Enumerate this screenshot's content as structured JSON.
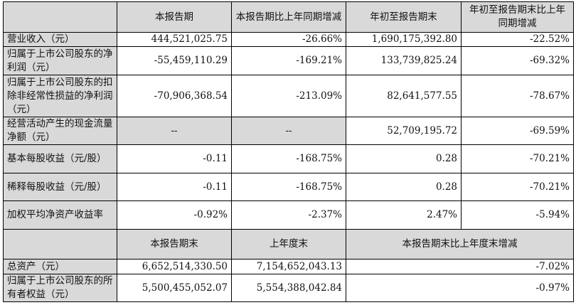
{
  "header1": [
    "",
    "本报告期",
    "本报告期比上年同期增减",
    "年初至报告期末",
    "年初至报告期末比上年同期增减"
  ],
  "rows1": [
    {
      "label": "营业收入（元）",
      "values": [
        "444,521,025.75",
        "-26.66%",
        "1,690,175,392.80",
        "-22.52%"
      ]
    },
    {
      "label": "归属于上市公司股东的净利润（元）",
      "values": [
        "-55,459,110.29",
        "-169.21%",
        "133,739,825.24",
        "-69.32%"
      ]
    },
    {
      "label": "归属于上市公司股东的扣除非经常性损益的净利润（元）",
      "values": [
        "-70,906,368.54",
        "-213.09%",
        "82,641,577.55",
        "-78.67%"
      ]
    },
    {
      "label": "经营活动产生的现金流量净额（元）",
      "values": [
        "--",
        "--",
        "52,709,195.72",
        "-69.59%"
      ]
    },
    {
      "label": "基本每股收益（元/股）",
      "values": [
        "-0.11",
        "-168.75%",
        "0.28",
        "-70.21%"
      ]
    },
    {
      "label": "稀释每股收益（元/股）",
      "values": [
        "-0.11",
        "-168.75%",
        "0.28",
        "-70.21%"
      ]
    },
    {
      "label": "加权平均净资产收益率",
      "values": [
        "-0.92%",
        "-2.37%",
        "2.47%",
        "-5.94%"
      ]
    }
  ],
  "header2": [
    "",
    "本报告期末",
    "上年度末",
    "本报告期末比上年度末增减"
  ],
  "rows2": [
    {
      "label": "总资产（元）",
      "values": [
        "6,652,514,330.50",
        "7,154,652,043.13",
        "-7.02%"
      ]
    },
    {
      "label": "归属于上市公司股东的所有者权益（元）",
      "values": [
        "5,500,455,052.07",
        "5,554,388,042.84",
        "-0.97%"
      ]
    }
  ]
}
